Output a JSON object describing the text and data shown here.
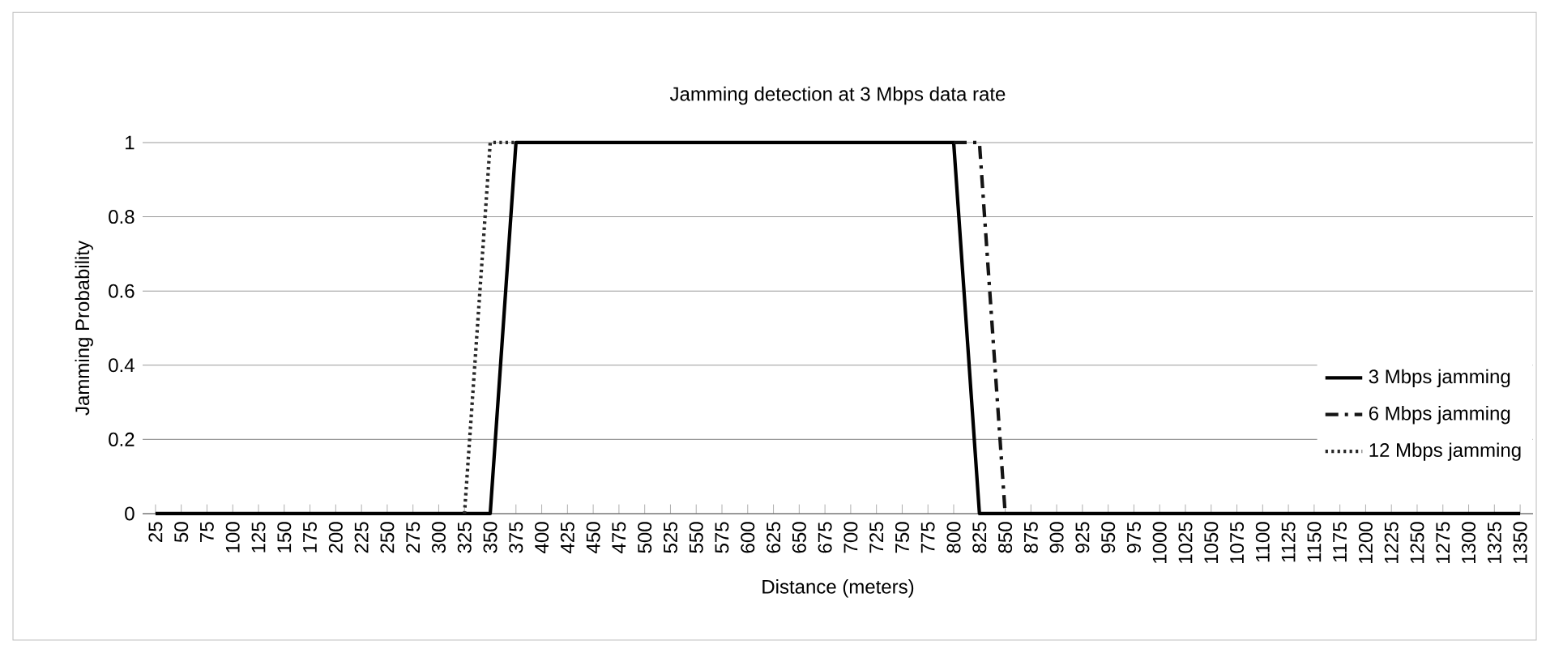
{
  "chart_data": {
    "type": "line",
    "title": "Jamming detection at 3 Mbps data rate",
    "xlabel": "Distance (meters)",
    "ylabel": "Jamming Probability",
    "categories": [
      "25",
      "50",
      "75",
      "100",
      "125",
      "150",
      "175",
      "200",
      "225",
      "250",
      "275",
      "300",
      "325",
      "350",
      "375",
      "400",
      "425",
      "450",
      "475",
      "500",
      "525",
      "550",
      "575",
      "600",
      "625",
      "650",
      "675",
      "700",
      "725",
      "750",
      "775",
      "800",
      "825",
      "850",
      "875",
      "900",
      "925",
      "950",
      "975",
      "1000",
      "1025",
      "1050",
      "1075",
      "1100",
      "1125",
      "1150",
      "1175",
      "1200",
      "1225",
      "1250",
      "1275",
      "1300",
      "1325",
      "1350"
    ],
    "ylim": [
      0,
      1
    ],
    "yticks": [
      0,
      0.2,
      0.4,
      0.6,
      0.8,
      1
    ],
    "grid": "y",
    "legend": "right",
    "marker": "none",
    "series": [
      {
        "name": "3 Mbps jamming",
        "color": "#000000",
        "line_style": "solid",
        "values": [
          0,
          0,
          0,
          0,
          0,
          0,
          0,
          0,
          0,
          0,
          0,
          0,
          0,
          0,
          1,
          1,
          1,
          1,
          1,
          1,
          1,
          1,
          1,
          1,
          1,
          1,
          1,
          1,
          1,
          1,
          1,
          1,
          0,
          0,
          0,
          0,
          0,
          0,
          0,
          0,
          0,
          0,
          0,
          0,
          0,
          0,
          0,
          0,
          0,
          0,
          0,
          0,
          0,
          0
        ]
      },
      {
        "name": "6 Mbps jamming",
        "color": "#141414",
        "line_style": "dashed",
        "values": [
          null,
          null,
          null,
          null,
          null,
          null,
          null,
          null,
          null,
          null,
          null,
          null,
          null,
          null,
          null,
          null,
          null,
          null,
          null,
          null,
          null,
          null,
          null,
          null,
          null,
          null,
          null,
          null,
          null,
          null,
          null,
          1,
          1,
          0,
          null,
          null,
          null,
          null,
          null,
          null,
          null,
          null,
          null,
          null,
          null,
          null,
          null,
          null,
          null,
          null,
          null,
          null,
          null,
          null
        ]
      },
      {
        "name": "12 Mbps jamming",
        "color": "#282828",
        "line_style": "dotted",
        "values": [
          null,
          null,
          null,
          null,
          null,
          null,
          null,
          null,
          null,
          null,
          null,
          null,
          0,
          1,
          1,
          null,
          null,
          null,
          null,
          null,
          null,
          null,
          null,
          null,
          null,
          null,
          null,
          null,
          null,
          null,
          null,
          null,
          null,
          null,
          null,
          null,
          null,
          null,
          null,
          null,
          null,
          null,
          null,
          null,
          null,
          null,
          null,
          null,
          null,
          null,
          null,
          null,
          null,
          null
        ]
      }
    ]
  }
}
